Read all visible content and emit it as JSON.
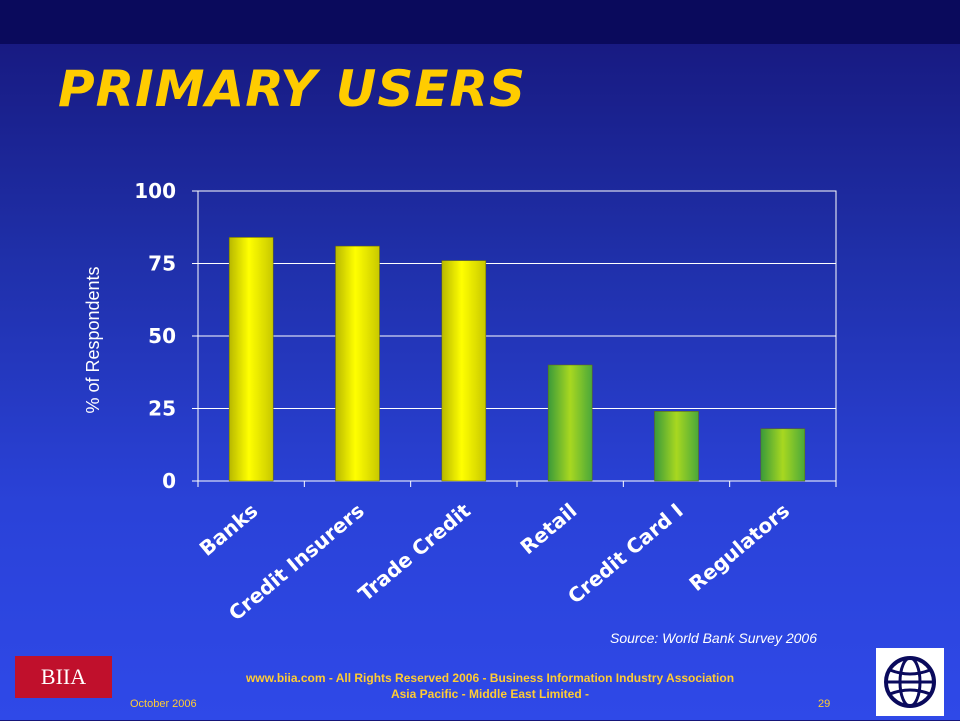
{
  "slide": {
    "title": "PRIMARY USERS",
    "source": "Source: World Bank Survey 2006"
  },
  "footer": {
    "logo_text": "BIIA",
    "line1": "www.biia.com  - All Rights Reserved 2006 -  Business Information Industry Association",
    "line2": "Asia Pacific - Middle East Limited -",
    "date": "October  2006",
    "page": "29",
    "right_logo_icon": "globe-icon"
  },
  "chart_data": {
    "type": "bar",
    "categories": [
      "Banks",
      "Credit Insurers",
      "Trade Credit",
      "Retail",
      "Credit Card I",
      "Regulators"
    ],
    "values": [
      84,
      81,
      76,
      40,
      24,
      18
    ],
    "ylabel": "% of Respondents",
    "ylim": [
      0,
      100
    ],
    "yticks": [
      0,
      25,
      50,
      75,
      100
    ],
    "grid": true,
    "colors": {
      "yellow_bars": "#ffff00",
      "green_bars": "#8fcc2a",
      "plot_border": "#ffffff",
      "tick_labels": "#ffffff"
    },
    "bar_color_groups": [
      "yellow",
      "yellow",
      "yellow",
      "green",
      "green",
      "green"
    ]
  }
}
